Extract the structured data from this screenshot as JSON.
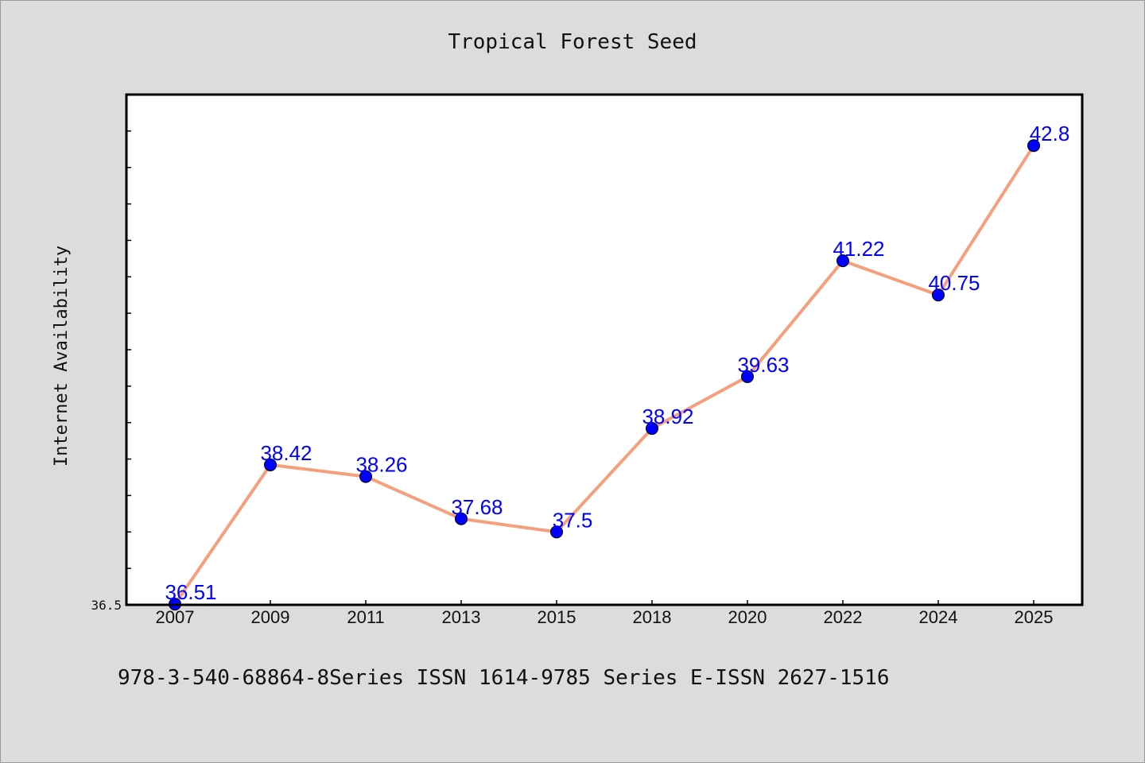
{
  "chart_data": {
    "type": "line",
    "title": "Tropical Forest Seed",
    "xlabel": "",
    "ylabel": "Internet Availability",
    "categories": [
      "2007",
      "2009",
      "2011",
      "2013",
      "2015",
      "2018",
      "2020",
      "2022",
      "2024",
      "2025"
    ],
    "series": [
      {
        "values": [
          36.51,
          38.42,
          38.26,
          37.68,
          37.5,
          38.92,
          39.63,
          41.22,
          40.75,
          42.8
        ]
      }
    ],
    "data_labels": [
      "36.51",
      "38.42",
      "38.26",
      "37.68",
      "37.5",
      "38.92",
      "39.63",
      "41.22",
      "40.75",
      "42.8"
    ],
    "y_tick_labels": [
      "36.5"
    ],
    "ylim": [
      36.5,
      43.5
    ],
    "grid": false,
    "line_color": "#f4a07c",
    "marker_color": "#0000ff",
    "label_color": "#0000ff",
    "background_color": "#dcdcdc",
    "plot_background_color": "#ffffff"
  },
  "footer": {
    "text": "978-3-540-68864-8Series ISSN 1614-9785 Series E-ISSN 2627-1516"
  }
}
